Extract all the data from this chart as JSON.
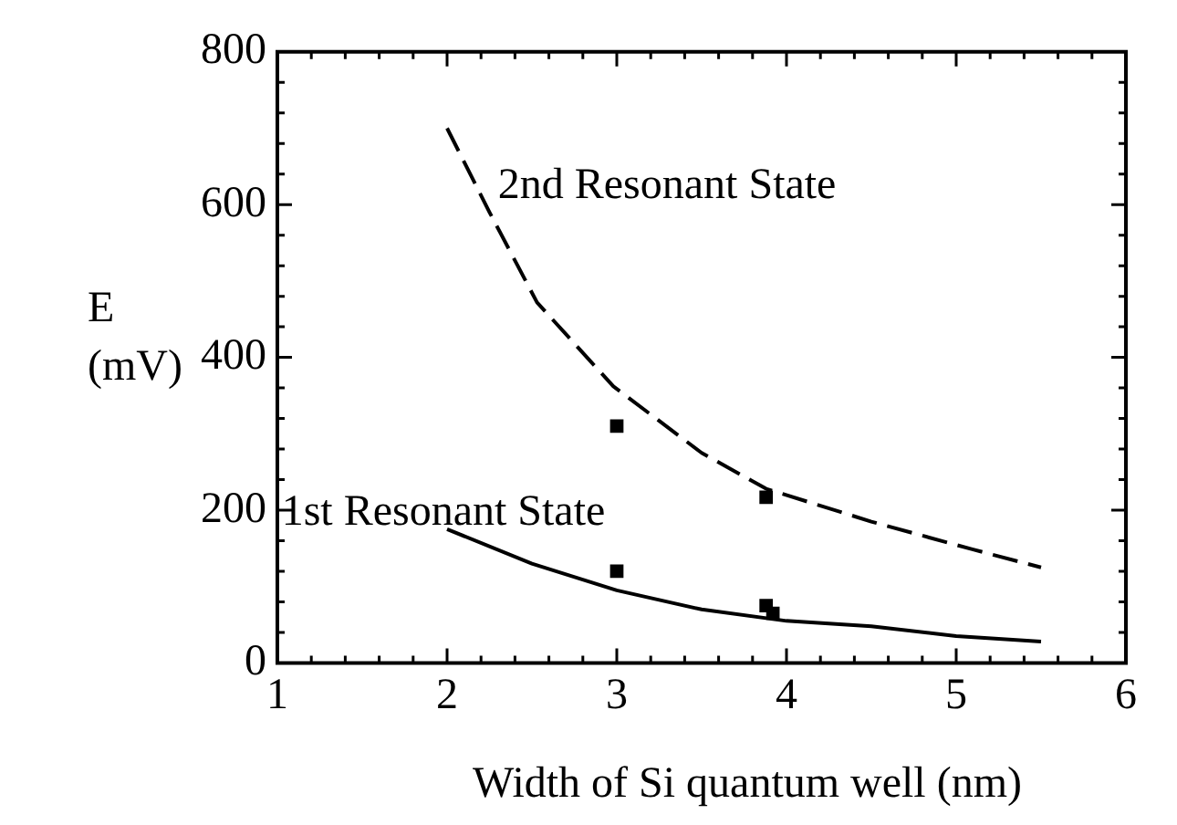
{
  "chart_data": {
    "type": "line",
    "xlabel": "Width of Si quantum well (nm)",
    "ylabel": "E\n(mV)",
    "xlim": [
      1,
      6
    ],
    "xticks": [
      1,
      2,
      3,
      4,
      5,
      6
    ],
    "ylim": [
      0,
      800
    ],
    "yticks": [
      0,
      200,
      400,
      600,
      800
    ],
    "grid": false,
    "legend": false,
    "series": [
      {
        "line_style": "dashed",
        "marker": "none",
        "color": "#000000",
        "x": [
          2,
          2.25,
          2.53,
          2.98,
          3.5,
          3.88,
          4.5,
          5.09,
          5.5
        ],
        "values": [
          700,
          590,
          472,
          362,
          275,
          228,
          185,
          149,
          125
        ]
      },
      {
        "line_style": "solid",
        "marker": "none",
        "color": "#000000",
        "x": [
          2,
          2.5,
          3,
          3.5,
          4,
          4.5,
          5,
          5.5
        ],
        "values": [
          175,
          130,
          95,
          70,
          55,
          48,
          35,
          28
        ]
      },
      {
        "type": "scatter",
        "marker": "square",
        "color": "#000000",
        "x": [
          3,
          3.88,
          3,
          3.88,
          3.92
        ],
        "values": [
          310,
          217,
          120,
          75,
          65
        ]
      }
    ],
    "annotations": [
      "2nd Resonant State",
      "1st Resonant State"
    ]
  }
}
